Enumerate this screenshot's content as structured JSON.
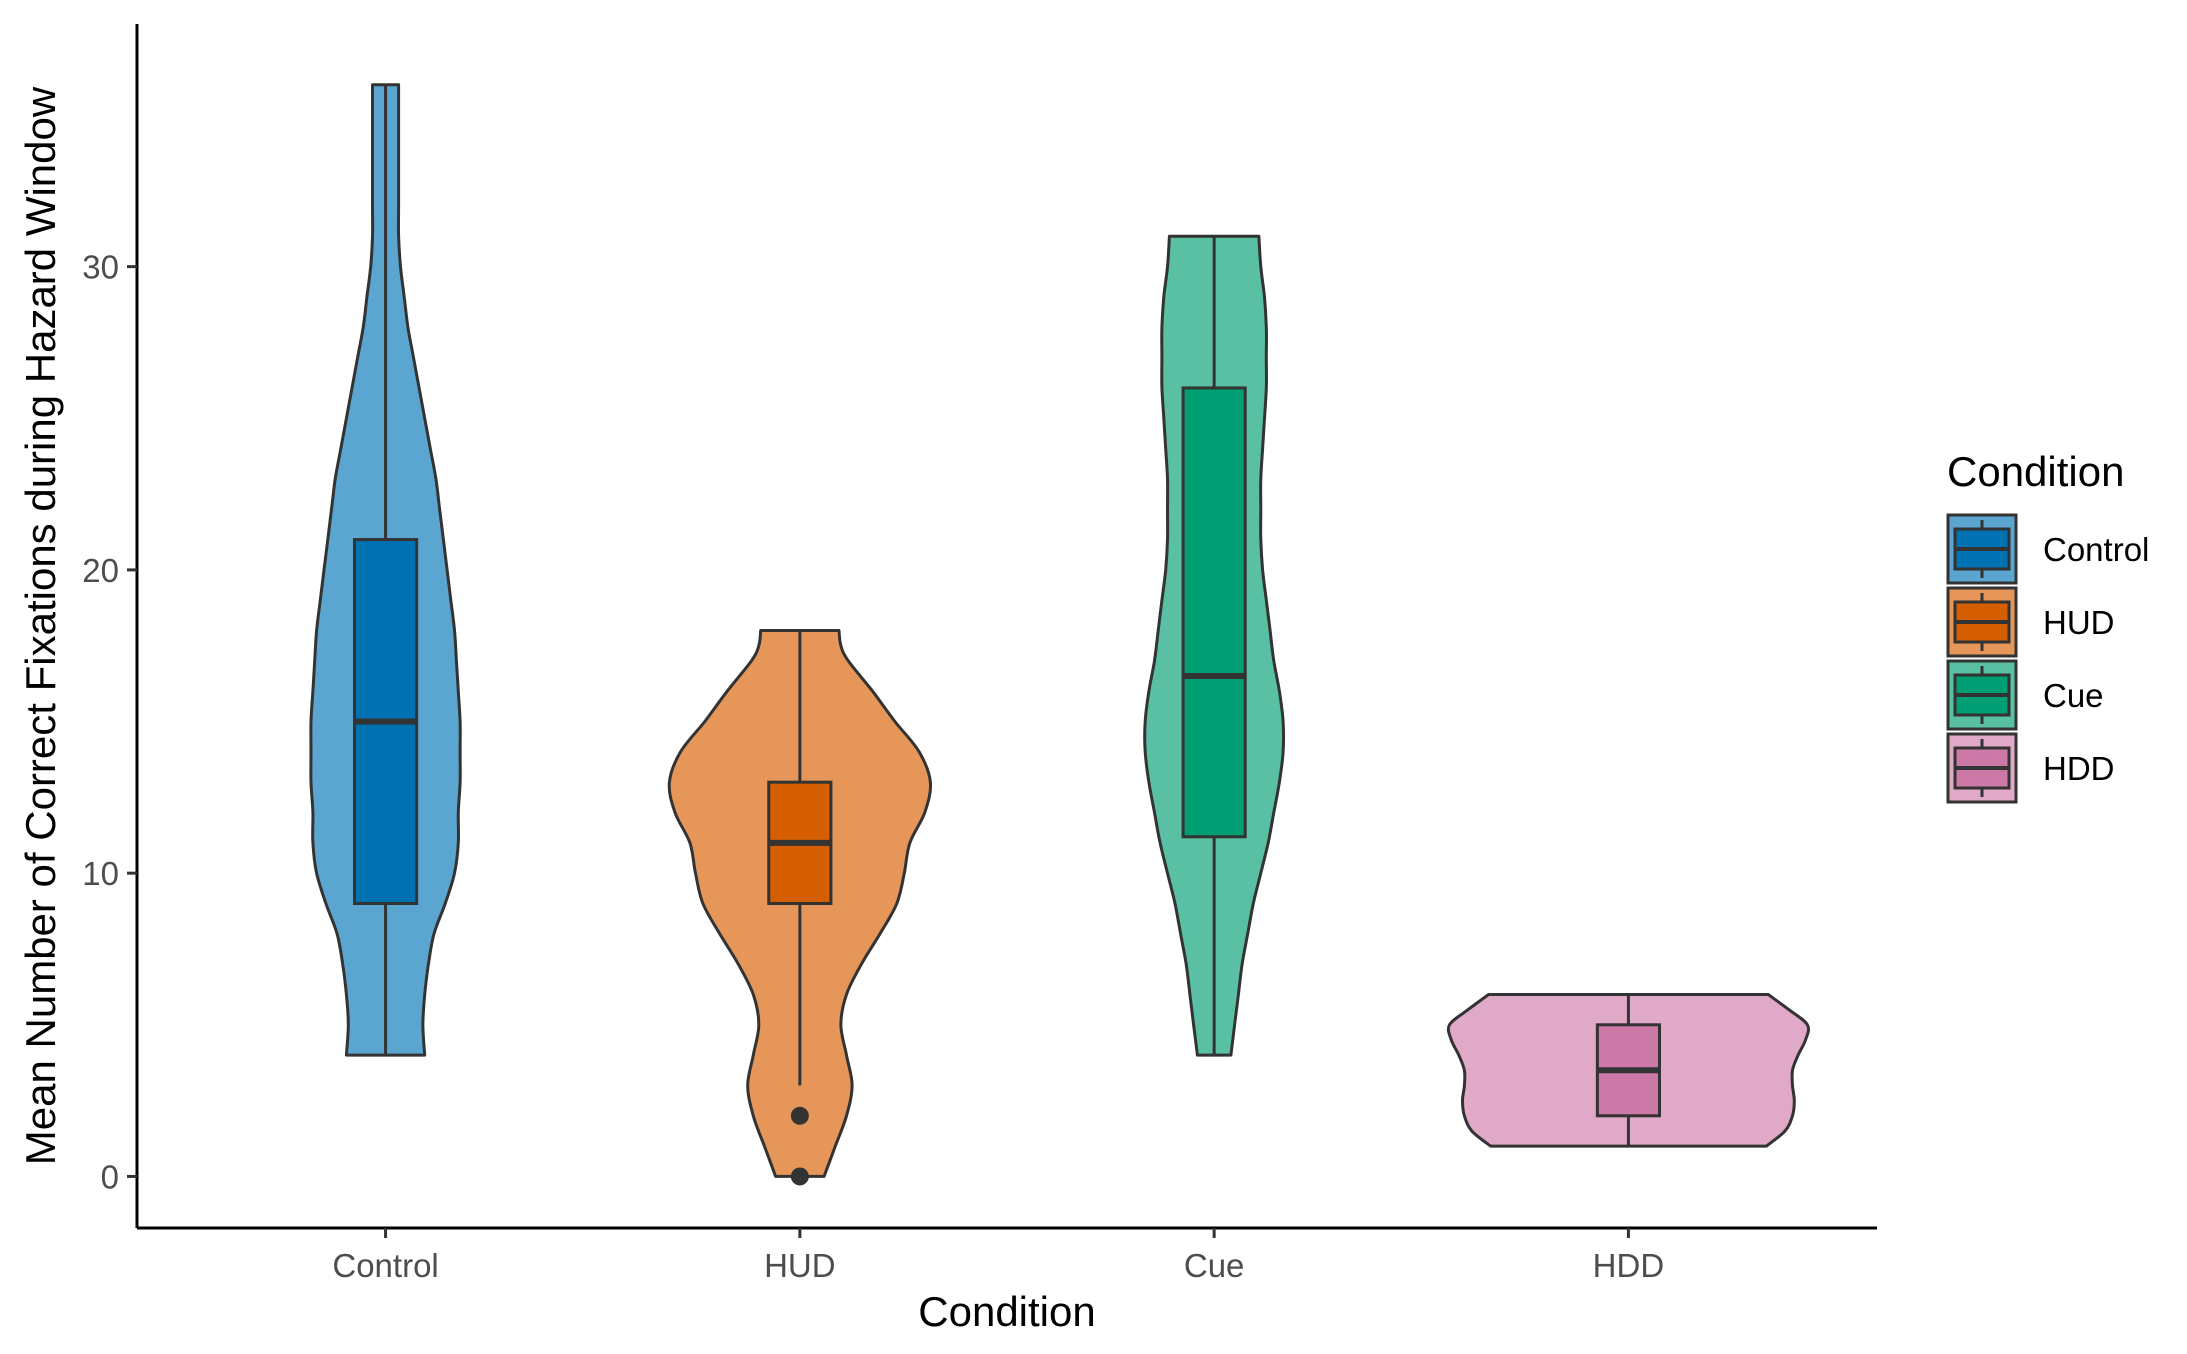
{
  "chart_data": {
    "type": "violin",
    "xlabel": "Condition",
    "ylabel": "Mean Number of Correct Fixations during Hazard Window",
    "categories": [
      "Control",
      "HUD",
      "Cue",
      "HDD"
    ],
    "ylim": [
      -1.7,
      38
    ],
    "yticks": [
      0,
      10,
      20,
      30
    ],
    "grid": false,
    "legend": {
      "title": "Condition",
      "position": "right",
      "entries": [
        "Control",
        "HUD",
        "Cue",
        "HDD"
      ]
    },
    "series": [
      {
        "name": "Control",
        "color": "#0072B2",
        "violin_fill": "#5BA6D1",
        "boxplot": {
          "min": 4,
          "q1": 9,
          "median": 15,
          "q3": 21,
          "max": 36
        },
        "outliers": [],
        "density": [
          [
            4,
            0.21
          ],
          [
            5,
            0.2
          ],
          [
            6,
            0.21
          ],
          [
            7,
            0.23
          ],
          [
            8,
            0.26
          ],
          [
            9,
            0.32
          ],
          [
            10,
            0.37
          ],
          [
            11,
            0.39
          ],
          [
            12,
            0.39
          ],
          [
            13,
            0.4
          ],
          [
            14,
            0.4
          ],
          [
            15,
            0.4
          ],
          [
            16,
            0.39
          ],
          [
            17,
            0.38
          ],
          [
            18,
            0.37
          ],
          [
            19,
            0.35
          ],
          [
            20,
            0.33
          ],
          [
            21,
            0.31
          ],
          [
            22,
            0.29
          ],
          [
            23,
            0.27
          ],
          [
            24,
            0.24
          ],
          [
            25,
            0.21
          ],
          [
            26,
            0.18
          ],
          [
            27,
            0.15
          ],
          [
            28,
            0.12
          ],
          [
            29,
            0.1
          ],
          [
            30,
            0.08
          ],
          [
            31,
            0.07
          ],
          [
            32,
            0.07
          ],
          [
            33,
            0.07
          ],
          [
            34,
            0.07
          ],
          [
            35,
            0.07
          ],
          [
            36,
            0.07
          ]
        ]
      },
      {
        "name": "HUD",
        "color": "#D55E00",
        "violin_fill": "#E69659",
        "boxplot": {
          "min": 3,
          "q1": 9,
          "median": 11,
          "q3": 13,
          "max": 18
        },
        "outliers": [
          2,
          0
        ],
        "density": [
          [
            0,
            0.13
          ],
          [
            0.5,
            0.16
          ],
          [
            1,
            0.19
          ],
          [
            2,
            0.25
          ],
          [
            3,
            0.28
          ],
          [
            4,
            0.25
          ],
          [
            5,
            0.22
          ],
          [
            6,
            0.25
          ],
          [
            7,
            0.33
          ],
          [
            8,
            0.43
          ],
          [
            9,
            0.52
          ],
          [
            10,
            0.56
          ],
          [
            11,
            0.59
          ],
          [
            12,
            0.67
          ],
          [
            13,
            0.7
          ],
          [
            14,
            0.64
          ],
          [
            15,
            0.51
          ],
          [
            16,
            0.39
          ],
          [
            17,
            0.26
          ],
          [
            17.5,
            0.22
          ],
          [
            18,
            0.21
          ]
        ]
      },
      {
        "name": "Cue",
        "color": "#009E73",
        "violin_fill": "#59C0A3",
        "boxplot": {
          "min": 4,
          "q1": 11.2,
          "median": 16.5,
          "q3": 26,
          "max": 31
        },
        "outliers": [],
        "density": [
          [
            4,
            0.09
          ],
          [
            5,
            0.11
          ],
          [
            6,
            0.13
          ],
          [
            7,
            0.15
          ],
          [
            8,
            0.18
          ],
          [
            9,
            0.21
          ],
          [
            10,
            0.25
          ],
          [
            11,
            0.29
          ],
          [
            12,
            0.32
          ],
          [
            13,
            0.35
          ],
          [
            14,
            0.37
          ],
          [
            15,
            0.37
          ],
          [
            16,
            0.35
          ],
          [
            17,
            0.32
          ],
          [
            18,
            0.3
          ],
          [
            19,
            0.28
          ],
          [
            20,
            0.26
          ],
          [
            21,
            0.25
          ],
          [
            22,
            0.25
          ],
          [
            23,
            0.25
          ],
          [
            24,
            0.26
          ],
          [
            25,
            0.27
          ],
          [
            26,
            0.28
          ],
          [
            27,
            0.28
          ],
          [
            28,
            0.28
          ],
          [
            29,
            0.27
          ],
          [
            30,
            0.25
          ],
          [
            31,
            0.24
          ]
        ]
      },
      {
        "name": "HDD",
        "color": "#CC79A7",
        "violin_fill": "#E0A9C8",
        "boxplot": {
          "min": 1,
          "q1": 2,
          "median": 3.5,
          "q3": 5,
          "max": 6
        },
        "outliers": [],
        "density": [
          [
            1,
            0.74
          ],
          [
            1.5,
            0.84
          ],
          [
            2,
            0.88
          ],
          [
            2.5,
            0.89
          ],
          [
            3,
            0.88
          ],
          [
            3.5,
            0.88
          ],
          [
            4,
            0.91
          ],
          [
            4.5,
            0.95
          ],
          [
            5,
            0.96
          ],
          [
            5.5,
            0.86
          ],
          [
            6,
            0.75
          ]
        ]
      }
    ]
  }
}
